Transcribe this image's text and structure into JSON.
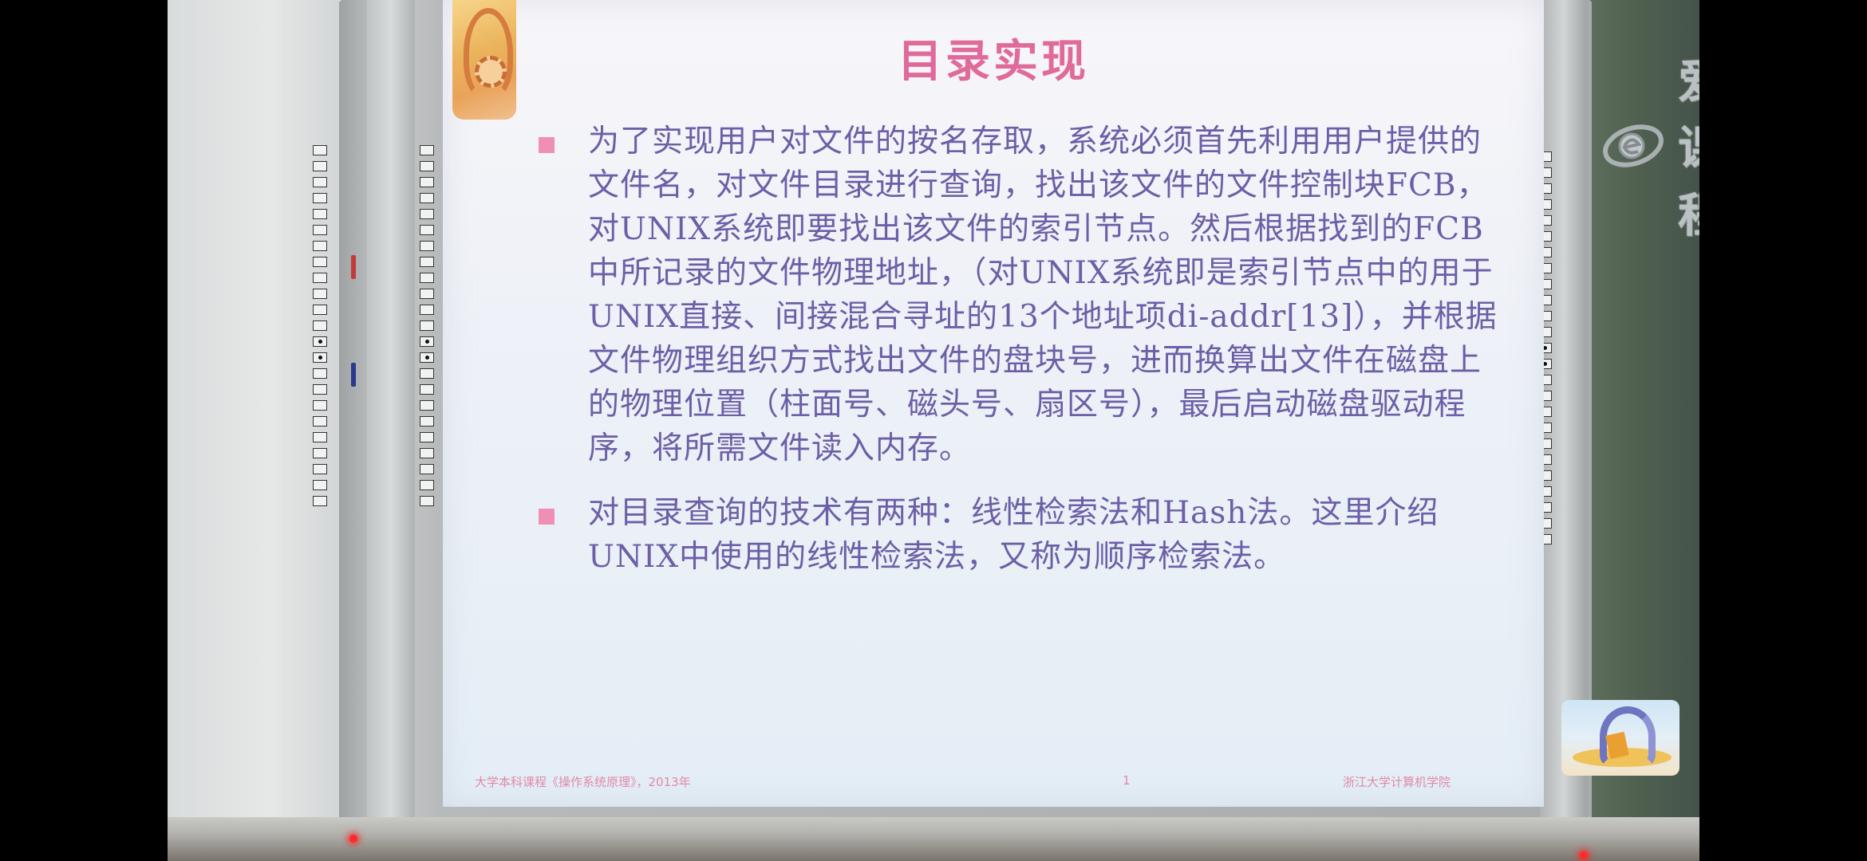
{
  "slide": {
    "title": "目录实现",
    "bullets": [
      {
        "text": "为了实现用户对文件的按名存取，系统必须首先利用用户提供的文件名，对文件目录进行查询，找出该文件的文件控制块FCB，对UNIX系统即要找出该文件的索引节点。然后根据找到的FCB中所记录的文件物理地址，（对UNIX系统即是索引节点中的用于UNIX直接、间接混合寻址的13个地址项di-addr[13]），并根据文件物理组织方式找出文件的盘块号，进而换算出文件在磁盘上的物理位置（柱面号、磁头号、扇区号），最后启动磁盘驱动程序，将所需文件读入内存。"
      },
      {
        "text": "对目录查询的技术有两种：线性检索法和Hash法。这里介绍UNIX中使用的线性检索法，又称为顺序检索法。"
      }
    ],
    "footer": {
      "left": "大学本科课程《操作系统原理》，2013年",
      "page": "1",
      "right": "浙江大学计算机学院"
    }
  },
  "watermark": {
    "text": "爱课程"
  },
  "colors": {
    "title": "#e06a9a",
    "body_text": "#6c5fa7",
    "bullet_mark": "#f08fb4",
    "footer_text": "#e08aa8",
    "led": "#ff2a2a"
  }
}
